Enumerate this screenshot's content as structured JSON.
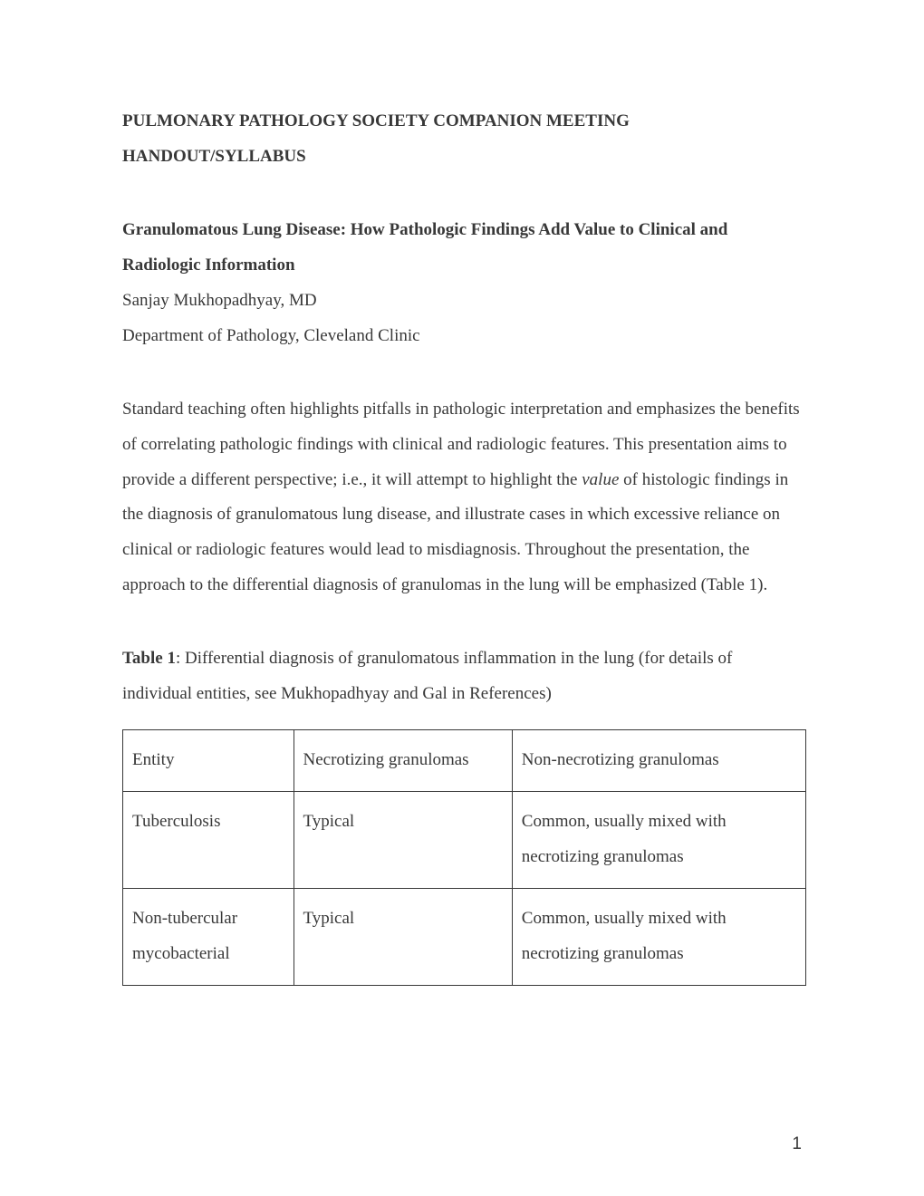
{
  "heading": {
    "line1": "PULMONARY PATHOLOGY SOCIETY COMPANION MEETING",
    "line2": "HANDOUT/SYLLABUS"
  },
  "subtitle": "Granulomatous Lung Disease: How Pathologic Findings Add Value to Clinical and Radiologic Information",
  "author": " Sanjay Mukhopadhyay, MD",
  "department": "Department of Pathology, Cleveland Clinic",
  "paragraph": {
    "p1": "Standard teaching often highlights pitfalls in pathologic interpretation and emphasizes the benefits of correlating pathologic findings with clinical and radiologic features. This presentation aims to provide a different perspective; i.e., it will attempt to highlight the ",
    "italic": "value",
    "p2": " of histologic findings in the diagnosis of granulomatous lung disease, and illustrate cases in which excessive reliance on clinical or radiologic features would lead to misdiagnosis. Throughout the presentation, the approach to the differential diagnosis of granulomas in the lung will be emphasized (Table 1)."
  },
  "table_caption": {
    "label": "Table 1",
    "text": ": Differential diagnosis of granulomatous inflammation in the lung (for details of individual entities, see Mukhopadhyay and Gal in References)"
  },
  "table": {
    "columns": [
      "Entity",
      "Necrotizing granulomas",
      "Non-necrotizing granulomas"
    ],
    "col_widths": [
      "25%",
      "32%",
      "43%"
    ],
    "rows": [
      [
        "Tuberculosis",
        "Typical",
        "Common, usually mixed with necrotizing granulomas"
      ],
      [
        "Non-tubercular mycobacterial",
        "Typical",
        "Common, usually mixed with necrotizing granulomas"
      ]
    ],
    "border_color": "#383838"
  },
  "page_number": "1",
  "style": {
    "text_color": "#383838",
    "background_color": "#ffffff",
    "body_fontsize": 19,
    "line_height": 2.05,
    "font_family": "Times New Roman"
  }
}
